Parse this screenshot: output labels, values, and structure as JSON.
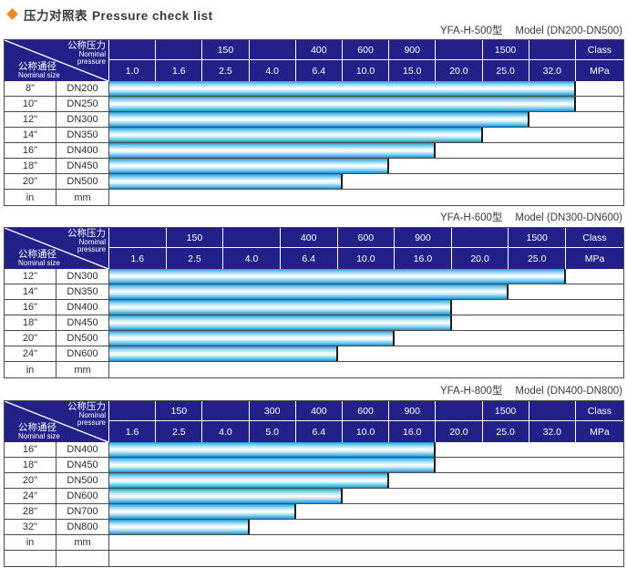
{
  "page": {
    "title_zh": "压力对照表",
    "title_en": "Pressure check list"
  },
  "colors": {
    "header_navy": "#232189",
    "bar_cyan": "#2a9ad3",
    "bar_highlight": "#ffffff",
    "border_dark": "#4a4a4a",
    "bullet_orange": "#f08829",
    "header_text": "#ffffff",
    "body_text": "#2e2e2e"
  },
  "corner": {
    "pressure_zh": "公称压力",
    "pressure_en1": "Nominal",
    "pressure_en2": "pressure",
    "size_zh": "公称通径",
    "size_en": "Nominal size"
  },
  "tables": [
    {
      "model": "YFA-H-500型",
      "range": "Model (DN200-DN500)",
      "class_values": [
        "",
        "",
        "150",
        "",
        "400",
        "600",
        "900",
        "",
        "1500",
        ""
      ],
      "class_label": "Class",
      "mpa_values": [
        "1.0",
        "1.6",
        "2.5",
        "4.0",
        "6.4",
        "10.0",
        "15.0",
        "20.0",
        "25.0",
        "32.0"
      ],
      "mpa_label": "MPa",
      "rows": [
        {
          "inch": "8\"",
          "dn": "DN200",
          "max_mpa": "32.0"
        },
        {
          "inch": "10\"",
          "dn": "DN250",
          "max_mpa": "32.0"
        },
        {
          "inch": "12\"",
          "dn": "DN300",
          "max_mpa": "25.0"
        },
        {
          "inch": "14\"",
          "dn": "DN350",
          "max_mpa": "20.0"
        },
        {
          "inch": "16\"",
          "dn": "DN400",
          "max_mpa": "15.0"
        },
        {
          "inch": "18\"",
          "dn": "DN450",
          "max_mpa": "10.0"
        },
        {
          "inch": "20\"",
          "dn": "DN500",
          "max_mpa": "6.4"
        }
      ],
      "unit_row": {
        "inch": "in",
        "dn": "mm"
      },
      "extra_empty_row": false
    },
    {
      "model": "YFA-H-600型",
      "range": "Model (DN300-DN600)",
      "class_values": [
        "",
        "150",
        "",
        "400",
        "600",
        "900",
        "",
        "1500"
      ],
      "class_label": "Class",
      "mpa_values": [
        "1.6",
        "2.5",
        "4.0",
        "6.4",
        "10.0",
        "16.0",
        "20.0",
        "25.0"
      ],
      "mpa_label": "MPa",
      "rows": [
        {
          "inch": "12\"",
          "dn": "DN300",
          "max_mpa": "25.0"
        },
        {
          "inch": "14\"",
          "dn": "DN350",
          "max_mpa": "20.0"
        },
        {
          "inch": "16\"",
          "dn": "DN400",
          "max_mpa": "16.0"
        },
        {
          "inch": "18\"",
          "dn": "DN450",
          "max_mpa": "16.0"
        },
        {
          "inch": "20\"",
          "dn": "DN500",
          "max_mpa": "10.0"
        },
        {
          "inch": "24\"",
          "dn": "DN600",
          "max_mpa": "6.4"
        }
      ],
      "unit_row": {
        "inch": "in",
        "dn": "mm"
      },
      "extra_empty_row": false
    },
    {
      "model": "YFA-H-800型",
      "range": "Model (DN400-DN800)",
      "class_values": [
        "",
        "150",
        "",
        "300",
        "400",
        "600",
        "900",
        "",
        "1500",
        ""
      ],
      "class_label": "Class",
      "mpa_values": [
        "1.6",
        "2.5",
        "4.0",
        "5.0",
        "6.4",
        "10.0",
        "16.0",
        "20.0",
        "25.0",
        "32.0"
      ],
      "mpa_label": "MPa",
      "rows": [
        {
          "inch": "16\"",
          "dn": "DN400",
          "max_mpa": "16.0"
        },
        {
          "inch": "18\"",
          "dn": "DN450",
          "max_mpa": "16.0"
        },
        {
          "inch": "20\"",
          "dn": "DN500",
          "max_mpa": "10.0"
        },
        {
          "inch": "24\"",
          "dn": "DN600",
          "max_mpa": "6.4"
        },
        {
          "inch": "28\"",
          "dn": "DN700",
          "max_mpa": "5.0"
        },
        {
          "inch": "32\"",
          "dn": "DN800",
          "max_mpa": "4.0"
        }
      ],
      "unit_row": {
        "inch": "in",
        "dn": "mm"
      },
      "extra_empty_row": true
    }
  ]
}
